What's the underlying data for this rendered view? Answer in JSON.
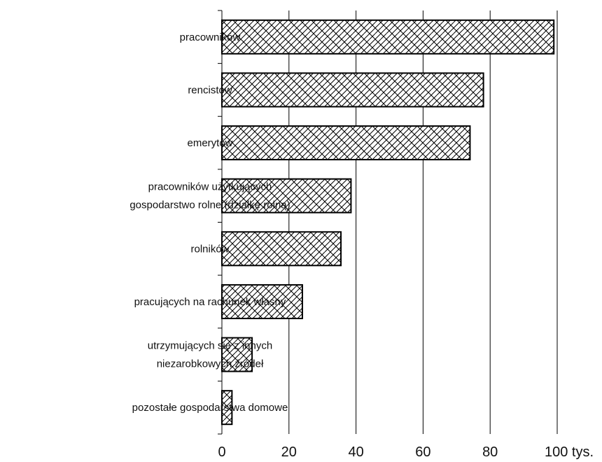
{
  "chart_data": {
    "type": "bar",
    "orientation": "horizontal",
    "categories": [
      [
        "pracowników"
      ],
      [
        "rencistów"
      ],
      [
        "emerytów"
      ],
      [
        "pracowników użytkujących",
        "gospodarstwo rolne (działkę rolną)"
      ],
      [
        "rolników"
      ],
      [
        "pracujących na rachunek własny"
      ],
      [
        "utrzymujących się z innych",
        "niezarobkowych źródeł"
      ],
      [
        "pozostałe gospodarstwa domowe"
      ]
    ],
    "values": [
      99,
      78,
      74,
      38.5,
      35.5,
      24,
      9,
      3
    ],
    "xlim": [
      0,
      100
    ],
    "xticks": [
      "0",
      "20",
      "40",
      "60",
      "80",
      "100 tys."
    ],
    "title": "",
    "xlabel": "",
    "ylabel": "",
    "grid": true,
    "legend": "none",
    "bar_fill_pattern": "crosshatch",
    "colors": {
      "bar_stroke": "#000000",
      "hatch": "#000000",
      "background": "#ffffff"
    }
  }
}
